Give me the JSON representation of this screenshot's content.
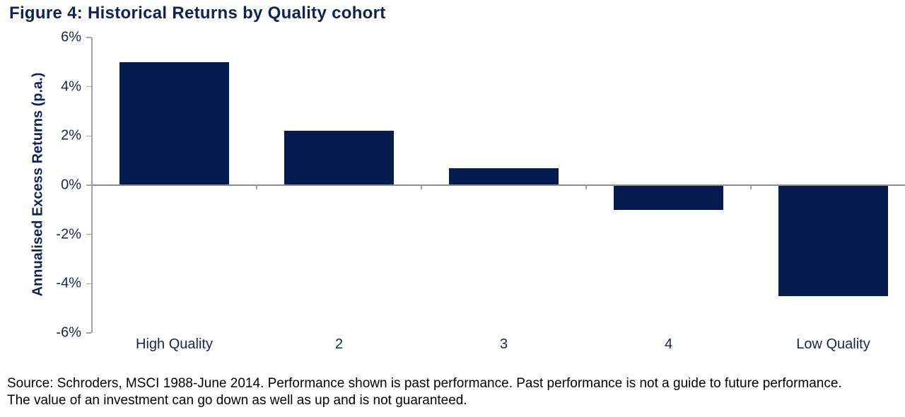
{
  "source_note": {
    "line1": "Source: Schroders, MSCI 1988-June 2014. Performance shown is past performance. Past performance is not a guide to future performance.",
    "line2": "The value of an investment can go down as well as up and is not guaranteed."
  },
  "colors": {
    "bar": "#061C4E",
    "heading_text": "#0E2254",
    "chart_text": "#15254E",
    "axis_line": "#A3A3A3",
    "baseline": "#8F8F8F",
    "source_text": "#000000"
  },
  "chart_data": {
    "type": "bar",
    "title": "Figure 4: Historical Returns by Quality cohort",
    "categories": [
      "High Quality",
      "2",
      "3",
      "4",
      "Low Quality"
    ],
    "values": [
      5.0,
      2.2,
      0.7,
      -1.0,
      -4.5
    ],
    "value_unit": "percent",
    "xlabel": "",
    "ylabel": "Annualised Excess Returns (p.a.)",
    "ylim": [
      -6,
      6
    ],
    "ytick_step": 2,
    "ytick_labels": [
      "6%",
      "4%",
      "2%",
      "0%",
      "-2%",
      "-4%",
      "-6%"
    ],
    "grid": false,
    "legend": null,
    "bar_color": "#061C4E"
  }
}
